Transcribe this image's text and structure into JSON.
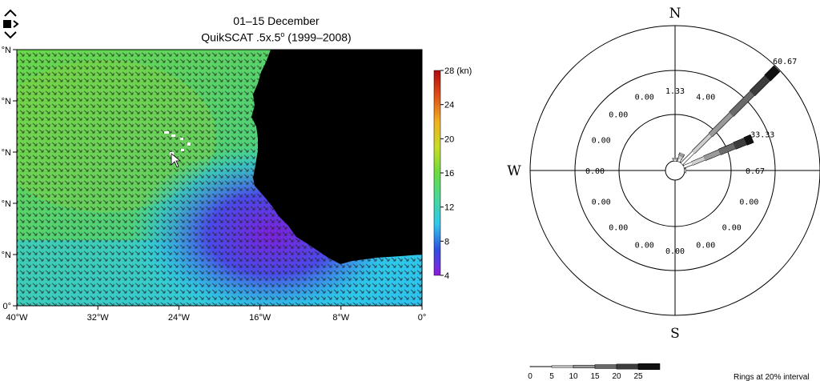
{
  "header": {
    "line1": "01–15 December",
    "line2": "QuikSCAT .5x.5",
    "line2_sup": "o",
    "line2_tail": " (1999–2008)"
  },
  "nav": {
    "prev_icon": "chevron-up-icon",
    "stop_icon": "stop-icon",
    "next_icon": "chevron-right-icon",
    "down_icon": "chevron-down-icon"
  },
  "map": {
    "x_ticks": [
      "40°W",
      "32°W",
      "24°W",
      "16°W",
      "8°W",
      "0°"
    ],
    "y_ticks": [
      "0°",
      "°N",
      "°N",
      "°N",
      "°N",
      "°N"
    ],
    "land_color": "#000000"
  },
  "chart_data": [
    {
      "type": "heatmap",
      "title": "01–15 December",
      "subtitle": "QuikSCAT .5x.5° (1999–2008)",
      "xlabel": "",
      "ylabel": "",
      "xlim": [
        -40,
        0
      ],
      "colorbar": {
        "unit": "(kn)",
        "range": [
          4,
          28
        ],
        "ticks": [
          4,
          8,
          12,
          16,
          20,
          24,
          28
        ],
        "tick_labels": [
          "4",
          "8",
          "12",
          "16",
          "20",
          "24",
          "28 (kn)"
        ],
        "colors": [
          "#8e1cdc",
          "#2f4fe0",
          "#2ec8ee",
          "#45d89a",
          "#6bdc3c",
          "#c8dc28",
          "#f0b020",
          "#e05018",
          "#b00a10"
        ]
      }
    },
    {
      "type": "rose",
      "directions": [
        "N",
        "NNE",
        "NE",
        "ENE",
        "E",
        "ESE",
        "SE",
        "SSE",
        "S",
        "SSW",
        "SW",
        "WSW",
        "W",
        "WNW",
        "NW",
        "NNW"
      ],
      "values": [
        1.33,
        4.0,
        60.67,
        33.33,
        0.67,
        0.0,
        0.0,
        0.0,
        0.0,
        0.0,
        0.0,
        0.0,
        0.0,
        0.0,
        0.0,
        0.0
      ],
      "compass": [
        "N",
        "S",
        "W"
      ],
      "legend_speeds": [
        "0",
        "5",
        "10",
        "15",
        "20",
        "25"
      ],
      "rings_label": "Rings at 20% interval"
    }
  ]
}
